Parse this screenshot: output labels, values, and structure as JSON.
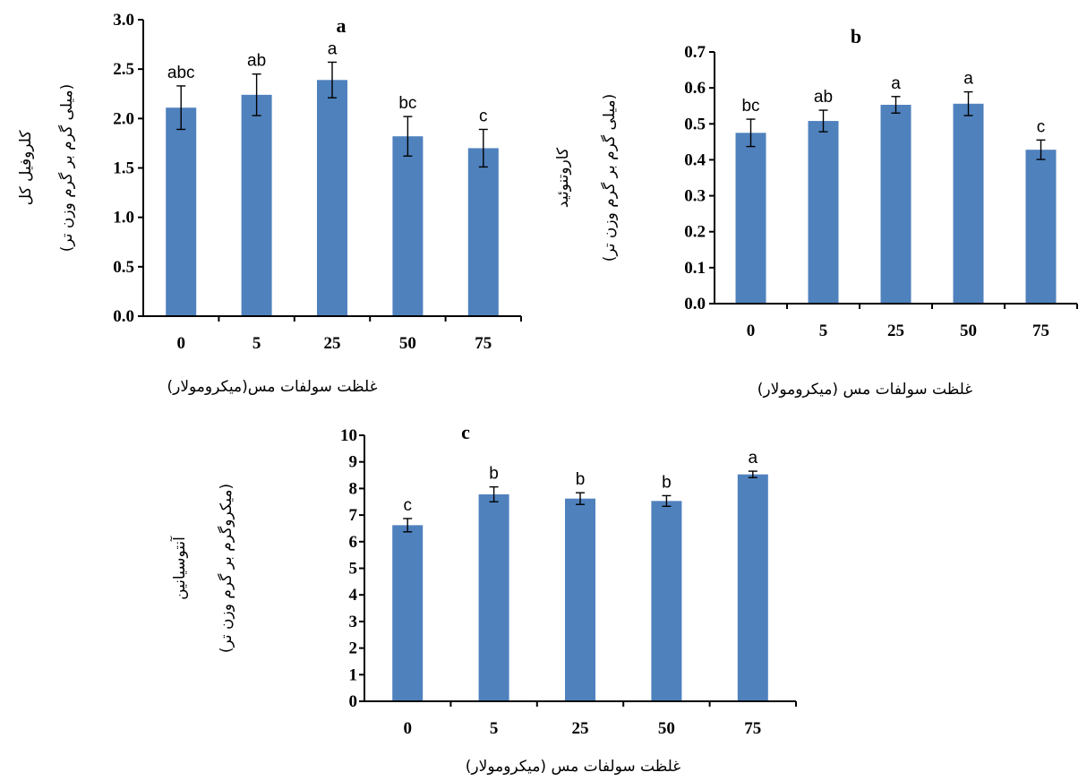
{
  "colors": {
    "bar": "#4f81bd",
    "axis": "#000000"
  },
  "chart_data": [
    {
      "type": "bar",
      "panel": "a",
      "categories": [
        "0",
        "5",
        "25",
        "50",
        "75"
      ],
      "values": [
        2.11,
        2.24,
        2.39,
        1.82,
        1.7
      ],
      "errors": [
        0.22,
        0.21,
        0.18,
        0.2,
        0.19
      ],
      "labels": [
        "abc",
        "ab",
        "a",
        "bc",
        "c"
      ],
      "ylim": [
        0,
        3.0
      ],
      "yticks": [
        "0.0",
        "0.5",
        "1.0",
        "1.5",
        "2.0",
        "2.5",
        "3.0"
      ],
      "xlabel": "غلظت سولفات مس(میکرومولار)",
      "ylabel": [
        "کلروفیل کل",
        "(میلی گرم بر گرم وزن تر)"
      ],
      "grid": false,
      "legend": "none"
    },
    {
      "type": "bar",
      "panel": "b",
      "categories": [
        "0",
        "5",
        "25",
        "50",
        "75"
      ],
      "values": [
        0.475,
        0.508,
        0.553,
        0.556,
        0.428
      ],
      "errors": [
        0.038,
        0.03,
        0.023,
        0.033,
        0.027
      ],
      "labels": [
        "bc",
        "ab",
        "a",
        "a",
        "c"
      ],
      "ylim": [
        0,
        0.7
      ],
      "yticks": [
        "0.0",
        "0.1",
        "0.2",
        "0.3",
        "0.4",
        "0.5",
        "0.6",
        "0.7"
      ],
      "xlabel": "غلظت سولفات مس (میکرومولار)",
      "ylabel": [
        "کاروتنوئید",
        "(میلی گرم بر گرم وزن تر)"
      ],
      "grid": false,
      "legend": "none"
    },
    {
      "type": "bar",
      "panel": "c",
      "categories": [
        "0",
        "5",
        "25",
        "50",
        "75"
      ],
      "values": [
        6.62,
        7.78,
        7.62,
        7.53,
        8.53
      ],
      "errors": [
        0.25,
        0.28,
        0.22,
        0.2,
        0.12
      ],
      "labels": [
        "c",
        "b",
        "b",
        "b",
        "a"
      ],
      "ylim": [
        0,
        10
      ],
      "yticks": [
        "0",
        "1",
        "2",
        "3",
        "4",
        "5",
        "6",
        "7",
        "8",
        "9",
        "10"
      ],
      "xlabel": "غلظت سولفات مس (میکرومولار)",
      "ylabel": [
        "آنتوسیانین",
        "(میکروگرم بر گرم وزن تر)"
      ],
      "grid": false,
      "legend": "none"
    }
  ]
}
